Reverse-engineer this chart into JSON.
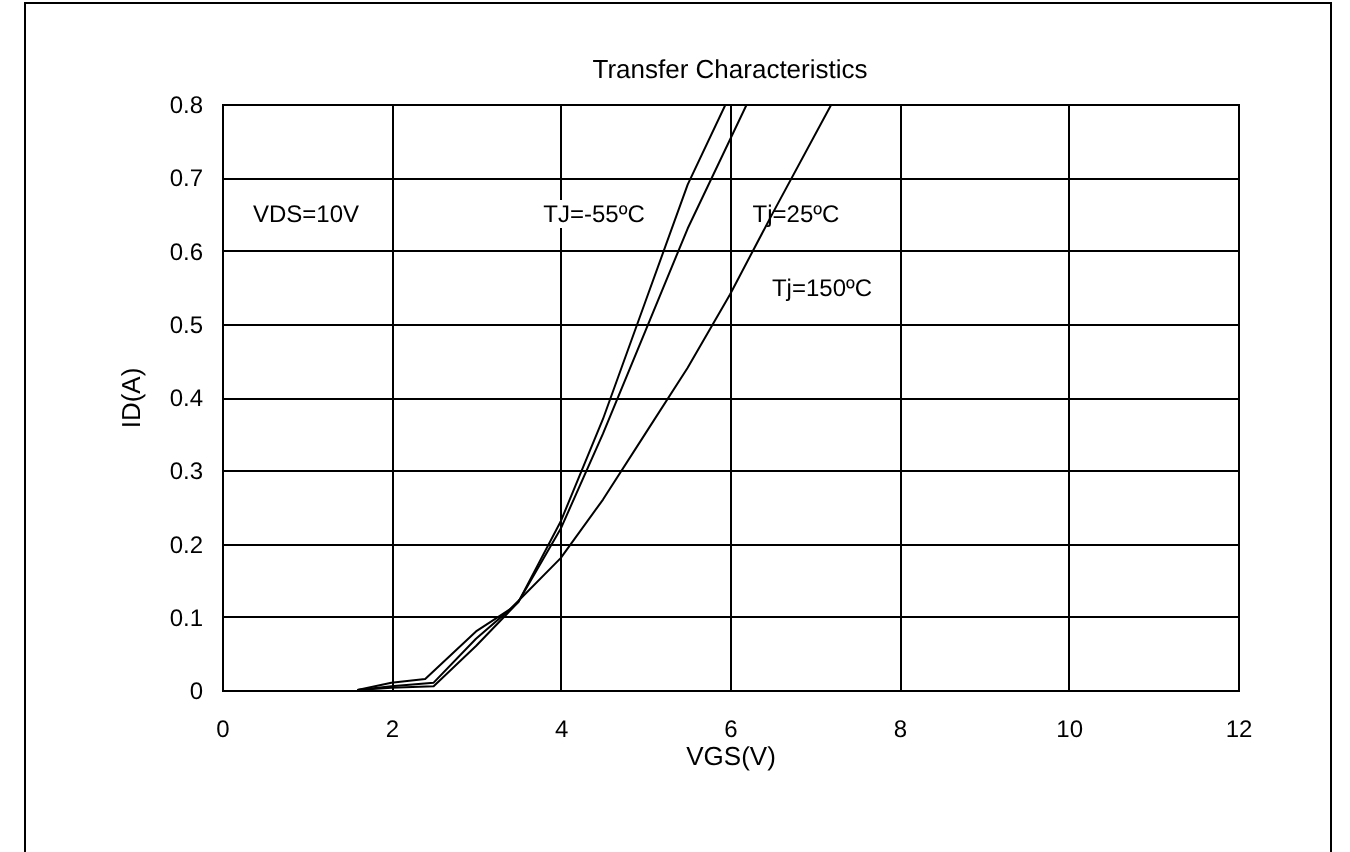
{
  "chart_data": {
    "type": "line",
    "title": "Transfer Characteristics",
    "xlabel": "VGS(V)",
    "ylabel": "ID(A)",
    "xlim": [
      0,
      12
    ],
    "xticks": [
      0,
      2,
      4,
      6,
      8,
      10,
      12
    ],
    "ylim": [
      0,
      0.8
    ],
    "yticks": [
      0,
      0.1,
      0.2,
      0.3,
      0.4,
      0.5,
      0.6,
      0.7,
      0.8
    ],
    "grid": true,
    "line_style": "solid",
    "series": [
      {
        "color": "#000000",
        "x": [
          1.6,
          2,
          2.5,
          3,
          3.5,
          4,
          4.5,
          5,
          5.5,
          5.95
        ],
        "values": [
          0,
          0.005,
          0.01,
          0.07,
          0.12,
          0.23,
          0.37,
          0.53,
          0.69,
          0.8
        ]
      },
      {
        "color": "#000000",
        "x": [
          1.6,
          2,
          2.5,
          3,
          3.5,
          4,
          4.5,
          5,
          5.5,
          6.2
        ],
        "values": [
          0,
          0.003,
          0.005,
          0.06,
          0.12,
          0.22,
          0.35,
          0.49,
          0.63,
          0.8
        ]
      },
      {
        "color": "#000000",
        "x": [
          1.6,
          2,
          2.4,
          3,
          3.4,
          4,
          4.5,
          5,
          5.5,
          6,
          6.5,
          7.2
        ],
        "values": [
          0,
          0.01,
          0.015,
          0.08,
          0.11,
          0.18,
          0.26,
          0.35,
          0.44,
          0.54,
          0.65,
          0.8
        ]
      }
    ],
    "annotations": [
      "VDS=10V",
      "TJ=-55ºC",
      "Tj=25ºC",
      "Tj=150ºC"
    ]
  }
}
